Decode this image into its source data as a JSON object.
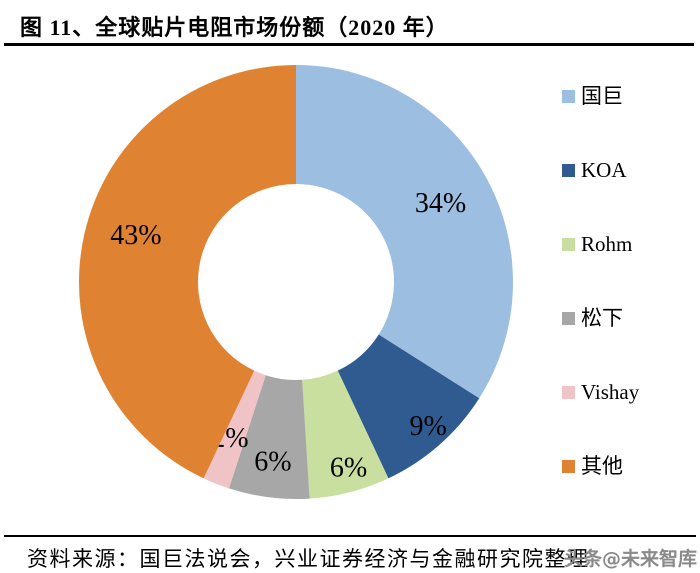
{
  "page": {
    "background": "#ffffff"
  },
  "header": {
    "title": "图 11、全球贴片电阻市场份额（2020 年）",
    "rule_color": "#000000"
  },
  "chart_data": {
    "type": "pie",
    "subtype": "donut",
    "title": "全球贴片电阻市场份额（2020 年）",
    "categories": [
      "国巨",
      "KOA",
      "Rohm",
      "松下",
      "Vishay",
      "其他"
    ],
    "values": [
      34,
      9,
      6,
      6,
      2,
      43
    ],
    "unit": "%",
    "data_labels": [
      "34%",
      "9%",
      "6%",
      "6%",
      "2%",
      "43%"
    ],
    "colors": [
      "#9CBEE0",
      "#2F5B90",
      "#C8DF9F",
      "#A7A7A7",
      "#F0C3C6",
      "#DF8333"
    ],
    "start_angle_deg": 0,
    "direction": "clockwise",
    "donut_hole_ratio": 0.45,
    "legend_position": "right",
    "legend_labels": [
      "国巨",
      "KOA",
      "Rohm",
      "松下",
      "Vishay",
      "其他"
    ]
  },
  "footer": {
    "source": "资料来源：国巨法说会，兴业证券经济与金融研究院整理",
    "watermark": "头条@未来智库",
    "watermark_color": "#8a8a8a",
    "rule_color": "#000000"
  }
}
